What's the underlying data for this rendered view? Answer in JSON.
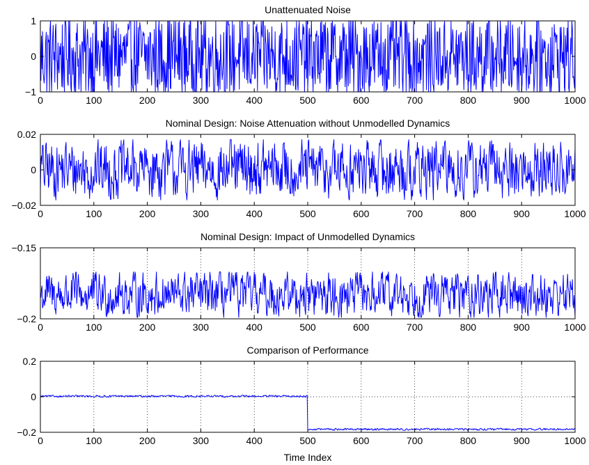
{
  "figure": {
    "xlabel": "Time Index",
    "line_color": "#0000ff"
  },
  "chart_data": [
    {
      "type": "line",
      "title": "Unattenuated Noise",
      "xlabel": "",
      "ylabel": "",
      "xlim": [
        0,
        1000
      ],
      "ylim": [
        -1,
        1
      ],
      "xticks": [
        0,
        100,
        200,
        300,
        400,
        500,
        600,
        700,
        800,
        900,
        1000
      ],
      "xtick_labels": [
        "0",
        "100",
        "200",
        "300",
        "400",
        "500",
        "600",
        "700",
        "800",
        "900",
        "1000"
      ],
      "yticks": [
        -1,
        0,
        1
      ],
      "ytick_labels": [
        "−1",
        "0",
        "1"
      ],
      "grid": false,
      "series": [
        {
          "x_range": [
            0,
            1000
          ],
          "n_points": 1001,
          "pattern": "uniform random noise",
          "mean": 0.0,
          "amplitude": 1.0,
          "switch_at": null,
          "level_after": null
        }
      ]
    },
    {
      "type": "line",
      "title": "Nominal Design: Noise Attenuation without Unmodelled Dynamics",
      "xlabel": "",
      "ylabel": "",
      "xlim": [
        0,
        1000
      ],
      "ylim": [
        -0.02,
        0.02
      ],
      "xticks": [
        0,
        100,
        200,
        300,
        400,
        500,
        600,
        700,
        800,
        900,
        1000
      ],
      "xtick_labels": [
        "0",
        "100",
        "200",
        "300",
        "400",
        "500",
        "600",
        "700",
        "800",
        "900",
        "1000"
      ],
      "yticks": [
        -0.02,
        0,
        0.02
      ],
      "ytick_labels": [
        "−0.02",
        "0",
        "0.02"
      ],
      "grid": false,
      "series": [
        {
          "x_range": [
            0,
            1000
          ],
          "n_points": 1001,
          "pattern": "filtered random noise",
          "mean": 0.0,
          "amplitude": 0.017,
          "switch_at": null,
          "level_after": null
        }
      ]
    },
    {
      "type": "line",
      "title": "Nominal Design: Impact of  Unmodelled Dynamics",
      "xlabel": "",
      "ylabel": "",
      "xlim": [
        0,
        1000
      ],
      "ylim": [
        -0.2,
        -0.15
      ],
      "xticks": [
        0,
        100,
        200,
        300,
        400,
        500,
        600,
        700,
        800,
        900,
        1000
      ],
      "xtick_labels": [
        "0",
        "100",
        "200",
        "300",
        "400",
        "500",
        "600",
        "700",
        "800",
        "900",
        "1000"
      ],
      "yticks": [
        -0.2,
        -0.15
      ],
      "ytick_labels": [
        "−0.2",
        "−0.15"
      ],
      "grid": true,
      "series": [
        {
          "x_range": [
            0,
            1000
          ],
          "n_points": 1001,
          "pattern": "filtered random noise",
          "mean": -0.183,
          "amplitude": 0.016,
          "switch_at": null,
          "level_after": null
        }
      ]
    },
    {
      "type": "line",
      "title": "Comparison of Performance",
      "xlabel": "Time Index",
      "ylabel": "",
      "xlim": [
        0,
        1000
      ],
      "ylim": [
        -0.2,
        0.2
      ],
      "xticks": [
        0,
        100,
        200,
        300,
        400,
        500,
        600,
        700,
        800,
        900,
        1000
      ],
      "xtick_labels": [
        "0",
        "100",
        "200",
        "300",
        "400",
        "500",
        "600",
        "700",
        "800",
        "900",
        "1000"
      ],
      "yticks": [
        -0.2,
        0,
        0.2
      ],
      "ytick_labels": [
        "−0.2",
        "0",
        "0.2"
      ],
      "grid": true,
      "series": [
        {
          "x_range": [
            0,
            1000
          ],
          "n_points": 1001,
          "pattern": "filtered random noise",
          "mean": 0.003,
          "amplitude": 0.006,
          "switch_at": 500,
          "level_after": -0.183
        }
      ]
    }
  ]
}
